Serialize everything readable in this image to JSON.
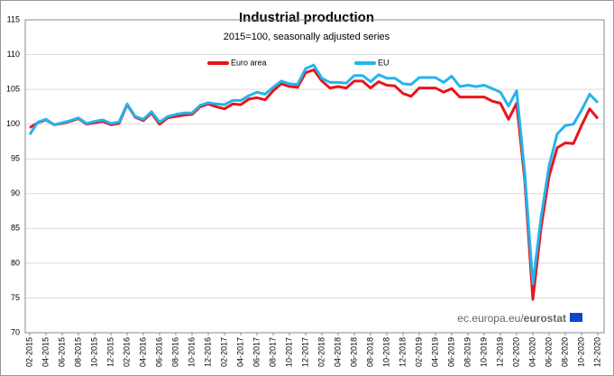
{
  "chart_data": {
    "type": "line",
    "title": "Industrial production",
    "subtitle": "2015=100, seasonally adjusted series",
    "source_prefix": "ec.europa.eu/",
    "source_brand": "eurostat",
    "categories": [
      "02-2015",
      null,
      "04-2015",
      null,
      "06-2015",
      null,
      "08-2015",
      null,
      "10-2015",
      null,
      "12-2015",
      null,
      "02-2016",
      null,
      "04-2016",
      null,
      "06-2016",
      null,
      "08-2016",
      null,
      "10-2016",
      null,
      "12-2016",
      null,
      "02-2017",
      null,
      "04-2017",
      null,
      "06-2017",
      null,
      "08-2017",
      null,
      "10-2017",
      null,
      "12-2017",
      null,
      "02-2018",
      null,
      "04-2018",
      null,
      "06-2018",
      null,
      "08-2018",
      null,
      "10-2018",
      null,
      "12-2018",
      null,
      "02-2019",
      null,
      "04-2019",
      null,
      "06-2019",
      null,
      "08-2019",
      null,
      "10-2019",
      null,
      "12-2019",
      null,
      "02-2020",
      null,
      "04-2020",
      null,
      "06-2020",
      null,
      "08-2020",
      null,
      "10-2020",
      null,
      "12-2020"
    ],
    "series": [
      {
        "name": "Euro area",
        "color": "#e8141c",
        "values": [
          99.5,
          100.2,
          100.6,
          99.9,
          100.1,
          100.4,
          100.8,
          100.0,
          100.2,
          100.4,
          99.9,
          100.1,
          102.8,
          101.0,
          100.5,
          101.6,
          100.0,
          100.9,
          101.1,
          101.3,
          101.4,
          102.5,
          102.9,
          102.5,
          102.2,
          102.9,
          102.8,
          103.6,
          103.8,
          103.5,
          104.8,
          105.8,
          105.4,
          105.3,
          107.4,
          107.8,
          106.2,
          105.2,
          105.4,
          105.2,
          106.2,
          106.2,
          105.2,
          106.1,
          105.6,
          105.5,
          104.4,
          104.0,
          105.2,
          105.2,
          105.2,
          104.6,
          105.1,
          103.9,
          103.9,
          103.9,
          103.9,
          103.3,
          103.0,
          100.7,
          103.0,
          92.0,
          74.8,
          85.0,
          92.5,
          96.6,
          97.3,
          97.2,
          99.8,
          102.2,
          100.8
        ]
      },
      {
        "name": "EU",
        "color": "#22b5ec",
        "values": [
          98.5,
          100.3,
          100.7,
          99.9,
          100.2,
          100.5,
          100.9,
          100.1,
          100.4,
          100.6,
          100.1,
          100.3,
          102.9,
          101.1,
          100.7,
          101.8,
          100.3,
          101.1,
          101.4,
          101.6,
          101.6,
          102.7,
          103.1,
          102.9,
          102.8,
          103.4,
          103.4,
          104.1,
          104.6,
          104.3,
          105.3,
          106.2,
          105.8,
          105.7,
          108.0,
          108.5,
          106.6,
          106.0,
          106.0,
          105.9,
          107.0,
          107.0,
          106.1,
          107.1,
          106.6,
          106.6,
          105.8,
          105.7,
          106.7,
          106.7,
          106.7,
          106.0,
          106.9,
          105.4,
          105.6,
          105.4,
          105.6,
          105.1,
          104.6,
          102.6,
          104.8,
          93.0,
          77.0,
          86.5,
          94.0,
          98.6,
          99.8,
          100.0,
          102.0,
          104.3,
          103.1
        ]
      }
    ],
    "ylim": [
      70,
      115
    ],
    "yticks": [
      70,
      75,
      80,
      85,
      90,
      95,
      100,
      105,
      110,
      115
    ],
    "grid": true
  }
}
